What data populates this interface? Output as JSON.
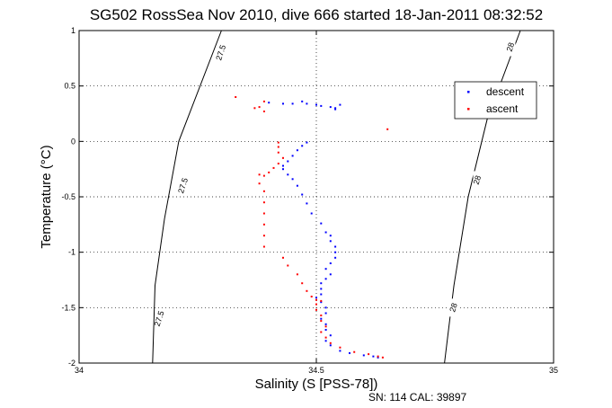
{
  "chart_data": {
    "type": "scatter",
    "title": "SG502 RossSea Nov 2010, dive 666 started 18-Jan-2011 08:32:52",
    "xlabel": "Salinity (S [PSS-78])",
    "ylabel": "Temperature (°C)",
    "xlim": [
      34,
      35
    ],
    "ylim": [
      -2,
      1
    ],
    "xticks": [
      "34",
      "34.5",
      "35"
    ],
    "yticks": [
      "-2",
      "-1.5",
      "-1",
      "-0.5",
      "0",
      "0.5",
      "1"
    ],
    "grid": true,
    "legend_position": "top-right",
    "footer": "SN: 114  CAL: 39897",
    "contours": [
      {
        "label": "27.5",
        "points": [
          [
            34.3,
            1.0
          ],
          [
            34.21,
            0.0
          ],
          [
            34.18,
            -0.7
          ],
          [
            34.16,
            -1.3
          ],
          [
            34.155,
            -2.0
          ]
        ],
        "label_positions": [
          [
            34.3,
            0.8
          ],
          [
            34.22,
            -0.4
          ],
          [
            34.17,
            -1.6
          ]
        ]
      },
      {
        "label": "28",
        "points": [
          [
            34.93,
            1.0
          ],
          [
            34.86,
            0.2
          ],
          [
            34.82,
            -0.5
          ],
          [
            34.79,
            -1.3
          ],
          [
            34.77,
            -2.0
          ]
        ],
        "label_positions": [
          [
            34.91,
            0.85
          ],
          [
            34.84,
            -0.35
          ],
          [
            34.79,
            -1.5
          ]
        ]
      }
    ],
    "series": [
      {
        "name": "descent",
        "color": "#0000ff",
        "points": [
          [
            34.47,
            0.36
          ],
          [
            34.45,
            0.34
          ],
          [
            34.48,
            0.34
          ],
          [
            34.5,
            0.33
          ],
          [
            34.53,
            0.31
          ],
          [
            34.54,
            0.29
          ],
          [
            34.4,
            0.35
          ],
          [
            34.43,
            0.34
          ],
          [
            34.51,
            0.32
          ],
          [
            34.55,
            0.33
          ],
          [
            34.54,
            0.3
          ],
          [
            34.48,
            -0.01
          ],
          [
            34.47,
            -0.04
          ],
          [
            34.46,
            -0.08
          ],
          [
            34.45,
            -0.13
          ],
          [
            34.44,
            -0.18
          ],
          [
            34.43,
            -0.22
          ],
          [
            34.43,
            -0.25
          ],
          [
            34.44,
            -0.3
          ],
          [
            34.45,
            -0.34
          ],
          [
            34.46,
            -0.4
          ],
          [
            34.47,
            -0.48
          ],
          [
            34.48,
            -0.56
          ],
          [
            34.49,
            -0.65
          ],
          [
            34.51,
            -0.74
          ],
          [
            34.52,
            -0.82
          ],
          [
            34.53,
            -0.85
          ],
          [
            34.53,
            -0.9
          ],
          [
            34.54,
            -0.95
          ],
          [
            34.54,
            -1.0
          ],
          [
            34.54,
            -1.05
          ],
          [
            34.53,
            -1.1
          ],
          [
            34.52,
            -1.15
          ],
          [
            34.53,
            -1.2
          ],
          [
            34.52,
            -1.24
          ],
          [
            34.51,
            -1.28
          ],
          [
            34.51,
            -1.33
          ],
          [
            34.51,
            -1.38
          ],
          [
            34.5,
            -1.41
          ],
          [
            34.51,
            -1.45
          ],
          [
            34.52,
            -1.5
          ],
          [
            34.52,
            -1.55
          ],
          [
            34.51,
            -1.6
          ],
          [
            34.52,
            -1.65
          ],
          [
            34.52,
            -1.7
          ],
          [
            34.53,
            -1.75
          ],
          [
            34.52,
            -1.8
          ],
          [
            34.53,
            -1.84
          ],
          [
            34.55,
            -1.89
          ],
          [
            34.57,
            -1.91
          ],
          [
            34.6,
            -1.93
          ],
          [
            34.62,
            -1.94
          ],
          [
            34.63,
            -1.95
          ]
        ]
      },
      {
        "name": "ascent",
        "color": "#ff0000",
        "points": [
          [
            34.33,
            0.4
          ],
          [
            34.39,
            0.36
          ],
          [
            34.38,
            0.31
          ],
          [
            34.39,
            0.27
          ],
          [
            34.37,
            0.3
          ],
          [
            34.65,
            0.11
          ],
          [
            34.42,
            -0.01
          ],
          [
            34.42,
            -0.05
          ],
          [
            34.42,
            -0.1
          ],
          [
            34.43,
            -0.15
          ],
          [
            34.42,
            -0.2
          ],
          [
            34.41,
            -0.24
          ],
          [
            34.4,
            -0.28
          ],
          [
            34.39,
            -0.31
          ],
          [
            34.38,
            -0.3
          ],
          [
            34.38,
            -0.38
          ],
          [
            34.39,
            -0.45
          ],
          [
            34.39,
            -0.55
          ],
          [
            34.39,
            -0.65
          ],
          [
            34.39,
            -0.75
          ],
          [
            34.39,
            -0.85
          ],
          [
            34.39,
            -0.95
          ],
          [
            34.43,
            -1.05
          ],
          [
            34.44,
            -1.12
          ],
          [
            34.46,
            -1.2
          ],
          [
            34.47,
            -1.28
          ],
          [
            34.48,
            -1.35
          ],
          [
            34.49,
            -1.4
          ],
          [
            34.5,
            -1.43
          ],
          [
            34.51,
            -1.44
          ],
          [
            34.5,
            -1.47
          ],
          [
            34.5,
            -1.52
          ],
          [
            34.51,
            -1.57
          ],
          [
            34.51,
            -1.62
          ],
          [
            34.52,
            -1.67
          ],
          [
            34.51,
            -1.72
          ],
          [
            34.52,
            -1.77
          ],
          [
            34.53,
            -1.82
          ],
          [
            34.55,
            -1.86
          ],
          [
            34.58,
            -1.9
          ],
          [
            34.61,
            -1.92
          ],
          [
            34.63,
            -1.94
          ],
          [
            34.64,
            -1.95
          ]
        ]
      }
    ]
  }
}
